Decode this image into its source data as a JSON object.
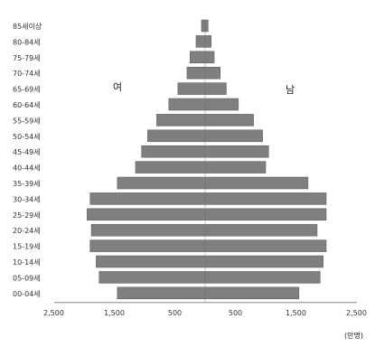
{
  "chart_data": {
    "type": "bar",
    "title": "",
    "xlabel": "(만명)",
    "ylabel": "",
    "categories": [
      "00-04세",
      "05-09세",
      "10-14세",
      "15-19세",
      "20-24세",
      "25-29세",
      "30-34세",
      "35-39세",
      "40-44세",
      "45-49세",
      "50-54세",
      "55-59세",
      "60-64세",
      "65-69세",
      "70-74세",
      "75-79세",
      "80-84세",
      "85세이상"
    ],
    "xlim": [
      -2500,
      2500
    ],
    "x_ticks": [
      {
        "value": -2500,
        "label": "2,500"
      },
      {
        "value": -1500,
        "label": "1,500"
      },
      {
        "value": -500,
        "label": "500"
      },
      {
        "value": 500,
        "label": "500"
      },
      {
        "value": 1500,
        "label": "1,500"
      },
      {
        "value": 2500,
        "label": "2,500"
      }
    ],
    "series": [
      {
        "name": "여",
        "side": "left",
        "color": "#7f7f7f",
        "values": [
          1450,
          1750,
          1800,
          1900,
          1880,
          1950,
          1900,
          1450,
          1150,
          1050,
          950,
          800,
          600,
          450,
          300,
          250,
          150,
          60
        ]
      },
      {
        "name": "남",
        "side": "right",
        "color": "#7f7f7f",
        "values": [
          1550,
          1900,
          1950,
          2000,
          1850,
          2000,
          2000,
          1700,
          1000,
          1050,
          950,
          800,
          550,
          350,
          250,
          150,
          100,
          50
        ]
      }
    ],
    "grid": false
  }
}
